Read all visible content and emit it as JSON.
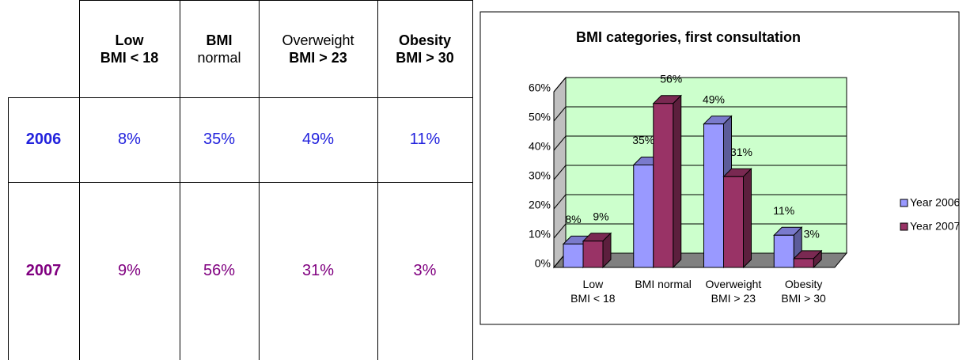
{
  "table": {
    "header": [
      {
        "line1": "Low",
        "line2": "BMI < 18"
      },
      {
        "line1": "BMI",
        "line2": "normal"
      },
      {
        "line1": "Overweight",
        "line2": "BMI > 23"
      },
      {
        "line1": "Obesity",
        "line2": "BMI > 30"
      }
    ],
    "rows": [
      {
        "year": "2006",
        "cells": [
          "8%",
          "35%",
          "49%",
          "11%"
        ]
      },
      {
        "year": "2007",
        "cells": [
          "9%",
          "56%",
          "31%",
          "3%"
        ]
      }
    ]
  },
  "chart_data": {
    "type": "bar3d",
    "title": "BMI categories, first consultation",
    "categories": [
      "Low\nBMI < 18",
      "BMI normal",
      "Overweight\nBMI > 23",
      "Obesity\nBMI > 30"
    ],
    "series": [
      {
        "name": "Year 2006",
        "color": "#9999ff",
        "values": [
          8,
          35,
          49,
          11
        ],
        "value_labels": [
          "8%",
          "35%",
          "49%",
          "11%"
        ]
      },
      {
        "name": "Year 2007",
        "color": "#993366",
        "values": [
          9,
          56,
          31,
          3
        ],
        "value_labels": [
          "9%",
          "56%",
          "31%",
          "3%"
        ]
      }
    ],
    "ylim": [
      0,
      60
    ],
    "yticks": [
      {
        "value": 0,
        "label": "0%"
      },
      {
        "value": 10,
        "label": "10%"
      },
      {
        "value": 20,
        "label": "20%"
      },
      {
        "value": 30,
        "label": "30%"
      },
      {
        "value": 40,
        "label": "40%"
      },
      {
        "value": 50,
        "label": "50%"
      },
      {
        "value": 60,
        "label": "60%"
      }
    ],
    "grid": true,
    "legend": "right"
  }
}
